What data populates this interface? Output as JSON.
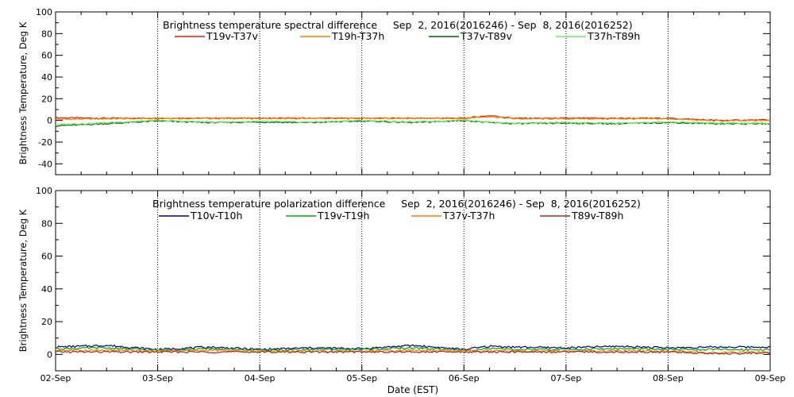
{
  "chart_data": [
    {
      "type": "line",
      "title": "Brightness temperature spectral difference     Sep  2, 2016(2016246) - Sep  8, 2016(2016252)",
      "xlabel": "",
      "ylabel": "Brightness Temperature, Deg K",
      "ylim": [
        -50,
        100
      ],
      "yticks": [
        -40,
        -20,
        0,
        20,
        40,
        60,
        80,
        100
      ],
      "xlim": [
        "2016-09-02",
        "2016-09-09"
      ],
      "x_ticks": [
        "02-Sep",
        "03-Sep",
        "04-Sep",
        "05-Sep",
        "06-Sep",
        "07-Sep",
        "08-Sep",
        "09-Sep"
      ],
      "x_tick_labels_shown": false,
      "grid": "vertical dotted at day boundaries",
      "legend_position": "top",
      "x": [
        "2016-09-02",
        "2016-09-02 12:00",
        "2016-09-03",
        "2016-09-03 12:00",
        "2016-09-04",
        "2016-09-04 12:00",
        "2016-09-05",
        "2016-09-05 12:00",
        "2016-09-06",
        "2016-09-06 06:00",
        "2016-09-06 12:00",
        "2016-09-07",
        "2016-09-07 12:00",
        "2016-09-08",
        "2016-09-08 12:00",
        "2016-09-09"
      ],
      "series": [
        {
          "name": "T19v-T37v",
          "color": "#dd2200",
          "values": [
            2.5,
            2,
            2,
            2,
            2,
            2,
            2,
            2,
            2,
            4.5,
            2,
            2,
            2,
            2,
            0,
            0.5
          ]
        },
        {
          "name": "T19h-T37h",
          "color": "#ff7f00",
          "values": [
            1,
            1.5,
            2,
            2,
            2,
            2,
            2,
            2,
            2,
            3.5,
            1.5,
            1.5,
            1.5,
            1.5,
            -0.5,
            0
          ]
        },
        {
          "name": "T37v-T89v",
          "color": "#006400",
          "values": [
            -5,
            -3,
            -0.5,
            -2,
            -1.5,
            -2,
            -0.5,
            -2,
            0,
            -2,
            -3,
            -2.5,
            -3,
            -2,
            -3,
            -3
          ]
        },
        {
          "name": "T37h-T89h",
          "color": "#66ee66",
          "values": [
            -4,
            -2,
            0,
            -1.5,
            -1,
            -1.5,
            0,
            -1.5,
            0.5,
            -1.5,
            -2.5,
            -2,
            -2.5,
            -1.5,
            -2.5,
            -2.5
          ]
        }
      ]
    },
    {
      "type": "line",
      "title": "Brightness temperature polarization difference     Sep  2, 2016(2016246) - Sep  8, 2016(2016252)",
      "xlabel": "Date (EST)",
      "ylabel": "Brightness Temperature, Deg K",
      "ylim": [
        -10,
        100
      ],
      "yticks": [
        0,
        20,
        40,
        60,
        80,
        100
      ],
      "xlim": [
        "2016-09-02",
        "2016-09-09"
      ],
      "x_ticks": [
        "02-Sep",
        "03-Sep",
        "04-Sep",
        "05-Sep",
        "06-Sep",
        "07-Sep",
        "08-Sep",
        "09-Sep"
      ],
      "x_tick_labels_shown": true,
      "grid": "vertical dotted at day boundaries",
      "legend_position": "top",
      "x": [
        "2016-09-02",
        "2016-09-02 12:00",
        "2016-09-03",
        "2016-09-03 12:00",
        "2016-09-04",
        "2016-09-04 12:00",
        "2016-09-05",
        "2016-09-05 12:00",
        "2016-09-06",
        "2016-09-06 06:00",
        "2016-09-06 12:00",
        "2016-09-07",
        "2016-09-07 12:00",
        "2016-09-08",
        "2016-09-08 12:00",
        "2016-09-09"
      ],
      "series": [
        {
          "name": "T10v-T10h",
          "color": "#00008b",
          "values": [
            4.5,
            5.5,
            3,
            4.5,
            3,
            4,
            3.5,
            5.5,
            3,
            5,
            4.5,
            4,
            5,
            4,
            4.5,
            4.5
          ]
        },
        {
          "name": "T19v-T19h",
          "color": "#00aa00",
          "values": [
            3.5,
            4,
            2.5,
            3.5,
            2.5,
            3,
            3,
            4,
            2.5,
            3.5,
            3,
            3,
            3.5,
            3,
            3,
            3
          ]
        },
        {
          "name": "T37v-T37h",
          "color": "#ff7f00",
          "values": [
            2.5,
            2.5,
            2,
            2.5,
            2,
            2,
            2,
            2.5,
            2,
            2,
            2,
            2,
            2,
            2,
            1,
            1.5
          ]
        },
        {
          "name": "T89v-T89h",
          "color": "#a52a2a",
          "values": [
            1.5,
            1.5,
            1.5,
            1.5,
            1.5,
            1.5,
            1.5,
            1.5,
            1.5,
            1.5,
            1.5,
            1.5,
            1.5,
            1.5,
            0.5,
            1
          ]
        }
      ]
    }
  ]
}
